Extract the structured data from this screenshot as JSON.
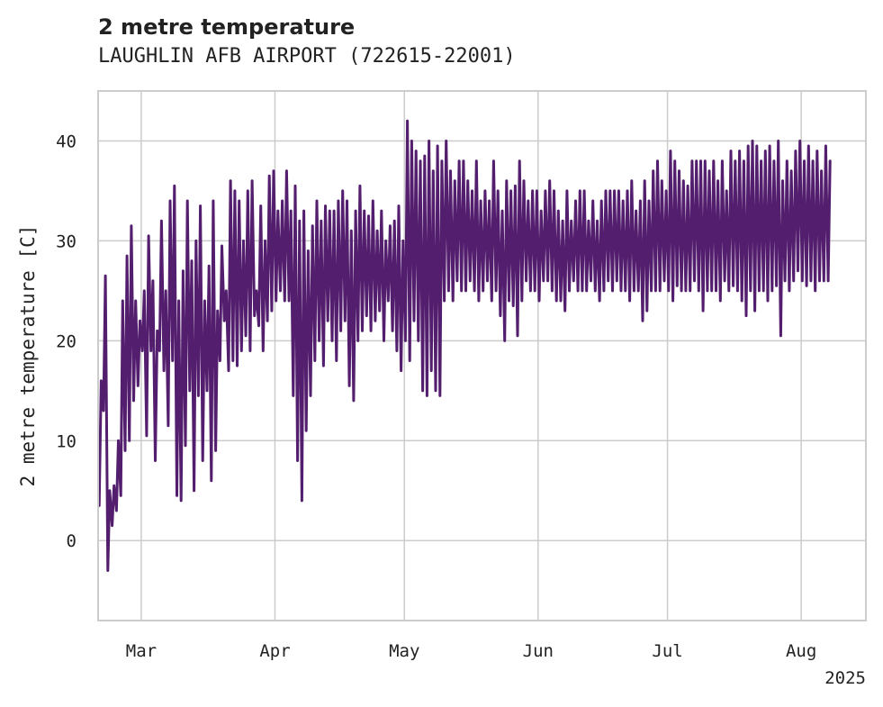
{
  "chart_data": {
    "type": "line",
    "title": "2 metre temperature",
    "subtitle": "LAUGHLIN AFB AIRPORT (722615-22001)",
    "xlabel": "",
    "ylabel": "2 metre temperature [C]",
    "x_range": [
      "2025-02-19",
      "2025-08-16"
    ],
    "ylim": [
      -8,
      45
    ],
    "y_ticks": [
      0,
      10,
      20,
      30,
      40
    ],
    "x_ticks": [
      {
        "date": "2025-03-01",
        "label": "Mar"
      },
      {
        "date": "2025-04-01",
        "label": "Apr"
      },
      {
        "date": "2025-05-01",
        "label": "May"
      },
      {
        "date": "2025-06-01",
        "label": "Jun"
      },
      {
        "date": "2025-07-01",
        "label": "Jul"
      },
      {
        "date": "2025-08-01",
        "label": "Aug"
      }
    ],
    "x_offset_label": "2025",
    "grid": true,
    "line_color": "#541e6e",
    "series": [
      {
        "name": "",
        "x": [
          "2025-02-19",
          "2025-02-20",
          "2025-02-21",
          "2025-02-22",
          "2025-02-23",
          "2025-02-24",
          "2025-02-25",
          "2025-02-26",
          "2025-02-27",
          "2025-02-28",
          "2025-03-01",
          "2025-03-02",
          "2025-03-03",
          "2025-03-04",
          "2025-03-05",
          "2025-03-06",
          "2025-03-07",
          "2025-03-08",
          "2025-03-09",
          "2025-03-10",
          "2025-03-11",
          "2025-03-12",
          "2025-03-13",
          "2025-03-14",
          "2025-03-15",
          "2025-03-16",
          "2025-03-17",
          "2025-03-18",
          "2025-03-19",
          "2025-03-20",
          "2025-03-21",
          "2025-03-22",
          "2025-03-23",
          "2025-03-24",
          "2025-03-25",
          "2025-03-26",
          "2025-03-27",
          "2025-03-28",
          "2025-03-29",
          "2025-03-30",
          "2025-03-31",
          "2025-04-01",
          "2025-04-02",
          "2025-04-03",
          "2025-04-04",
          "2025-04-05",
          "2025-04-06",
          "2025-04-07",
          "2025-04-08",
          "2025-04-09",
          "2025-04-10",
          "2025-04-11",
          "2025-04-12",
          "2025-04-13",
          "2025-04-14",
          "2025-04-15",
          "2025-04-16",
          "2025-04-17",
          "2025-04-18",
          "2025-04-19",
          "2025-04-20",
          "2025-04-21",
          "2025-04-22",
          "2025-04-23",
          "2025-04-24",
          "2025-04-25",
          "2025-04-26",
          "2025-04-27",
          "2025-04-28",
          "2025-04-29",
          "2025-04-30",
          "2025-05-01",
          "2025-05-02",
          "2025-05-03",
          "2025-05-04",
          "2025-05-05",
          "2025-05-06",
          "2025-05-07",
          "2025-05-08",
          "2025-05-09",
          "2025-05-10",
          "2025-05-11",
          "2025-05-12",
          "2025-05-13",
          "2025-05-14",
          "2025-05-15",
          "2025-05-16",
          "2025-05-17",
          "2025-05-18",
          "2025-05-19",
          "2025-05-20",
          "2025-05-21",
          "2025-05-22",
          "2025-05-23",
          "2025-05-24",
          "2025-05-25",
          "2025-05-26",
          "2025-05-27",
          "2025-05-28",
          "2025-05-29",
          "2025-05-30",
          "2025-05-31",
          "2025-06-01",
          "2025-06-02",
          "2025-06-03",
          "2025-06-04",
          "2025-06-05",
          "2025-06-06",
          "2025-06-07",
          "2025-06-08",
          "2025-06-09",
          "2025-06-10",
          "2025-06-11",
          "2025-06-12",
          "2025-06-13",
          "2025-06-14",
          "2025-06-15",
          "2025-06-16",
          "2025-06-17",
          "2025-06-18",
          "2025-06-19",
          "2025-06-20",
          "2025-06-21",
          "2025-06-22",
          "2025-06-23",
          "2025-06-24",
          "2025-06-25",
          "2025-06-26",
          "2025-06-27",
          "2025-06-28",
          "2025-06-29",
          "2025-06-30",
          "2025-07-01",
          "2025-07-02",
          "2025-07-03",
          "2025-07-04",
          "2025-07-05",
          "2025-07-06",
          "2025-07-07",
          "2025-07-08",
          "2025-07-09",
          "2025-07-10",
          "2025-07-11",
          "2025-07-12",
          "2025-07-13",
          "2025-07-14",
          "2025-07-15",
          "2025-07-16",
          "2025-07-17",
          "2025-07-18",
          "2025-07-19",
          "2025-07-20",
          "2025-07-21",
          "2025-07-22",
          "2025-07-23",
          "2025-07-24",
          "2025-07-25",
          "2025-07-26",
          "2025-07-27",
          "2025-07-28",
          "2025-07-29",
          "2025-07-30",
          "2025-07-31",
          "2025-08-01",
          "2025-08-02",
          "2025-08-03",
          "2025-08-04",
          "2025-08-05",
          "2025-08-06",
          "2025-08-07",
          "2025-08-08",
          "2025-08-09",
          "2025-08-10",
          "2025-08-11",
          "2025-08-12",
          "2025-08-13",
          "2025-08-14",
          "2025-08-15",
          "2025-08-16"
        ],
        "min": [
          3.5,
          13,
          -3,
          1.5,
          3,
          4.5,
          9,
          10,
          14,
          15.5,
          19,
          10.5,
          19,
          8,
          19,
          17,
          11.5,
          18,
          4.5,
          4,
          9.5,
          15,
          5,
          14.5,
          8,
          15,
          6,
          9,
          18,
          22,
          17,
          18,
          17.5,
          19,
          20.5,
          19,
          22.5,
          21.5,
          19,
          22,
          23,
          24,
          25,
          24,
          24,
          14.5,
          8,
          4,
          11,
          14.5,
          18,
          20,
          17.5,
          22,
          20,
          18,
          21,
          22,
          15.5,
          14,
          20,
          21,
          22.5,
          21,
          22,
          23,
          20,
          24,
          21,
          19,
          17,
          20,
          18,
          22,
          20,
          15,
          14.5,
          17,
          15,
          14.5,
          24,
          25,
          24,
          26,
          25,
          25,
          26,
          25,
          24,
          25,
          26,
          24,
          25,
          22.5,
          20,
          24,
          23.5,
          20.5,
          24,
          26,
          25,
          25,
          24,
          26,
          26,
          25,
          24,
          24,
          23,
          25,
          26,
          25,
          25,
          25,
          26,
          25,
          24,
          25,
          26,
          25,
          26,
          25,
          25,
          24,
          25,
          25,
          22,
          23,
          25,
          25,
          25,
          26,
          25,
          24,
          25.5,
          25,
          25,
          25,
          26,
          25,
          23,
          25,
          25,
          25,
          24,
          26,
          25,
          25.5,
          25,
          24,
          22.5,
          25,
          23,
          25,
          25,
          24,
          25,
          25.5,
          20.5,
          26,
          25,
          26,
          27,
          26,
          25.5,
          26,
          25,
          26,
          26,
          26
        ],
        "max": [
          16,
          26.5,
          5,
          5.5,
          10,
          24,
          28.5,
          31.5,
          24,
          22,
          25,
          30.5,
          26,
          21,
          32,
          25,
          34,
          35.5,
          24,
          27,
          34,
          28,
          30,
          33.5,
          24,
          27.5,
          34,
          23,
          29.5,
          25,
          36,
          35,
          34,
          30,
          35,
          36,
          25,
          33.5,
          30,
          36.5,
          37,
          33,
          34,
          37,
          33,
          35.5,
          32,
          33,
          29,
          31.5,
          34,
          32,
          33.5,
          33,
          33,
          34,
          35,
          34,
          31,
          33,
          35.5,
          33,
          32.5,
          34,
          31,
          33,
          30,
          31.5,
          32,
          33.5,
          30,
          42,
          40,
          39,
          38,
          38.5,
          40,
          37,
          39.5,
          38,
          40,
          37,
          36,
          38,
          38,
          36,
          35,
          38,
          34,
          35,
          34,
          38,
          35,
          33,
          36,
          35,
          35.5,
          38,
          36,
          34,
          35,
          35,
          33,
          35,
          36,
          35,
          33,
          32,
          35,
          32,
          34,
          35,
          35,
          32,
          34,
          32,
          34,
          35,
          35,
          35,
          35,
          34,
          35,
          36,
          33,
          34,
          36,
          34,
          37,
          38,
          36,
          35,
          39,
          38,
          37,
          36,
          35.5,
          38,
          38,
          38,
          38,
          37,
          38,
          36,
          38,
          35,
          39,
          38,
          39,
          38,
          39.5,
          40,
          39.5,
          38,
          39,
          39.5,
          38,
          40,
          36,
          38,
          37,
          39,
          40,
          38,
          39.5,
          38,
          39,
          37,
          39.5,
          38,
          39,
          37,
          39,
          38,
          37,
          38,
          39,
          37,
          38,
          39
        ]
      }
    ]
  }
}
